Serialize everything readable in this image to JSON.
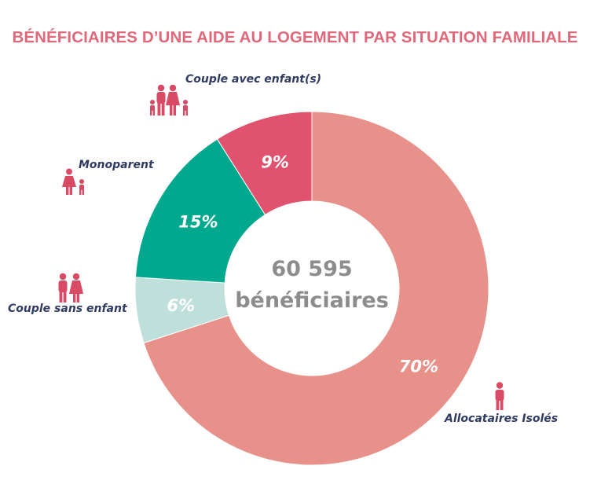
{
  "title": "BÉNÉFICIAIRES D’UNE AIDE AU LOGEMENT PAR SITUATION FAMILIALE",
  "center": {
    "line1": "60 595",
    "line2": "bénéficiaires"
  },
  "chart_data": {
    "type": "pie",
    "title": "BÉNÉFICIAIRES D’UNE AIDE AU LOGEMENT PAR SITUATION FAMILIALE",
    "total": 60595,
    "total_label": "bénéficiaires",
    "slices": [
      {
        "name": "Allocataires Isolés",
        "value": 70,
        "label": "70%",
        "color": "#e8918a",
        "icon": "single-person-icon"
      },
      {
        "name": "Couple sans enfant",
        "value": 6,
        "label": "6%",
        "color": "#bfe0da",
        "icon": "couple-icon"
      },
      {
        "name": "Monoparent",
        "value": 15,
        "label": "15%",
        "color": "#00a88e",
        "icon": "parent-child-icon"
      },
      {
        "name": "Couple avec enfant(s)",
        "value": 9,
        "label": "9%",
        "color": "#e0526e",
        "icon": "family-icon"
      }
    ],
    "hole": "donut",
    "legend": "none",
    "label_color": "#2f3b63",
    "icon_color": "#d94a64"
  }
}
